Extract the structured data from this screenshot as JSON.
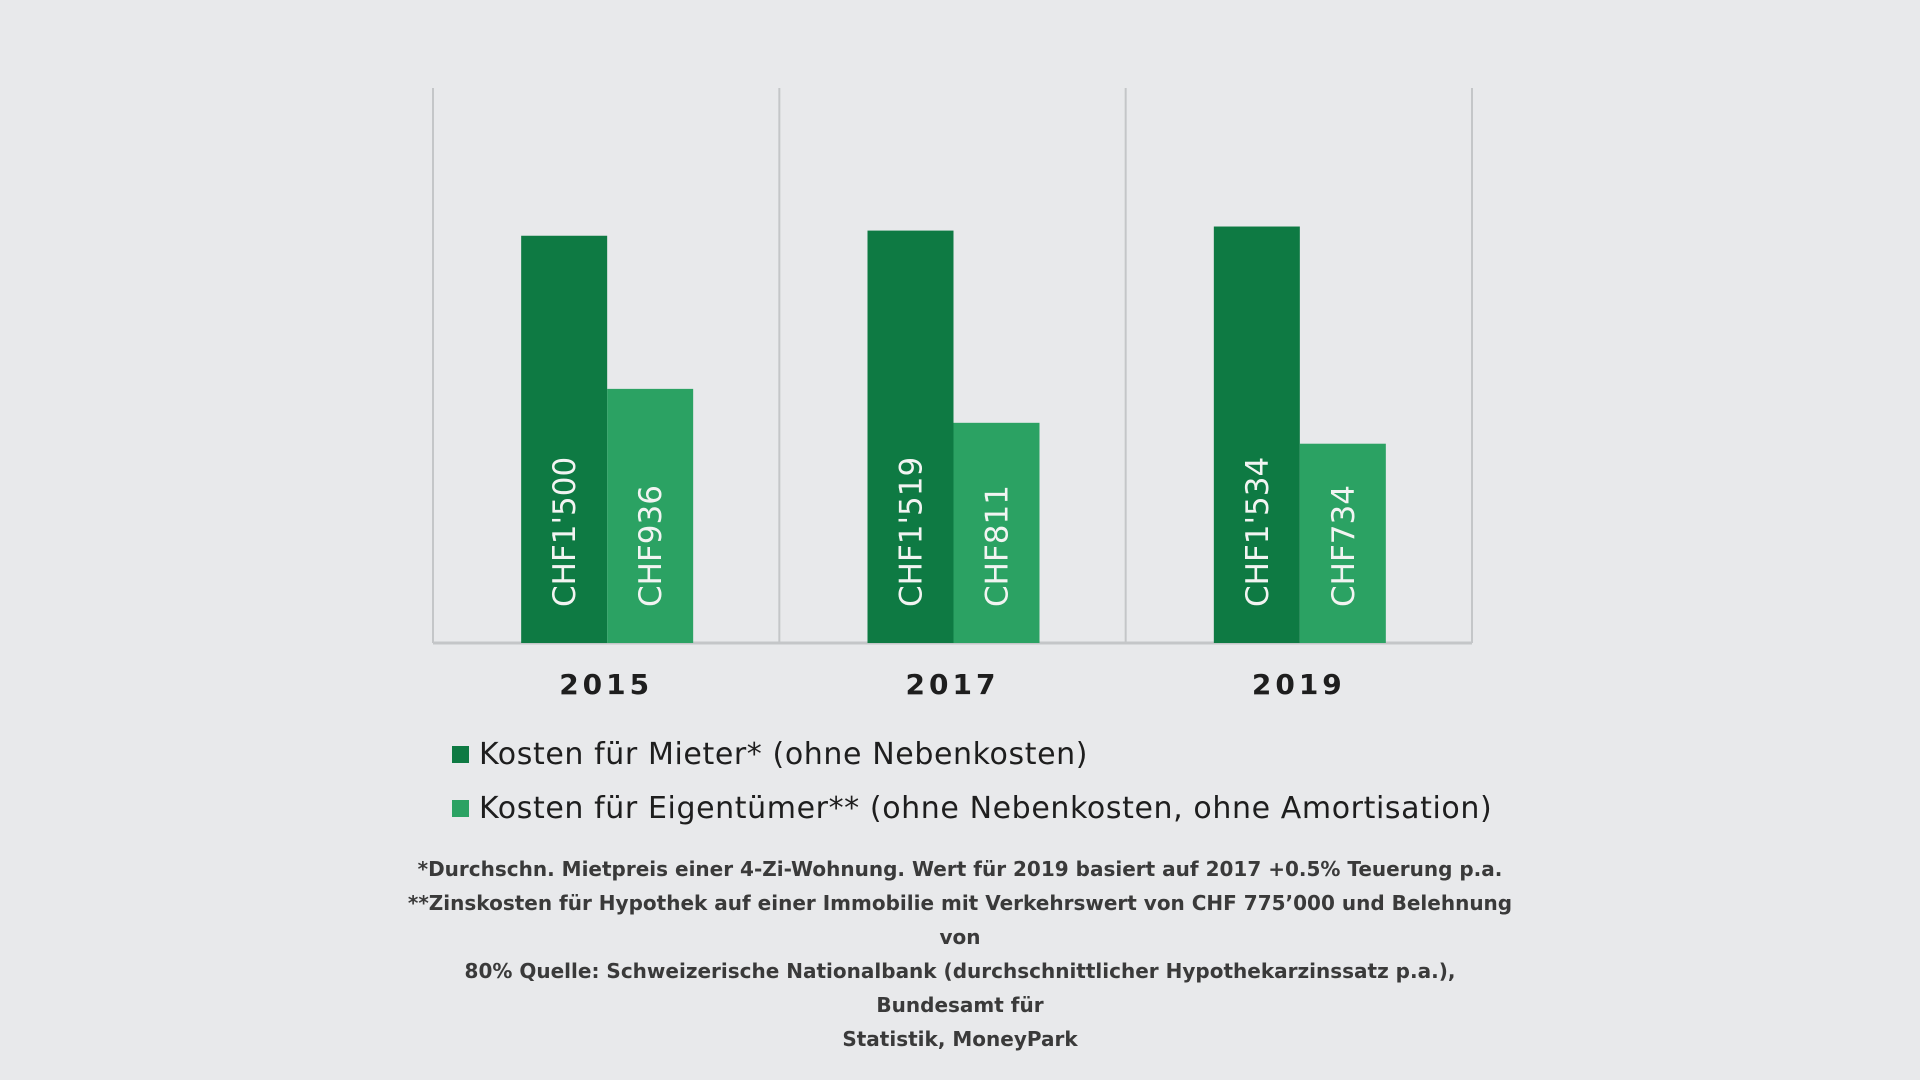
{
  "colors": {
    "background": "#e8e9eb",
    "mieter": "#0e7a43",
    "eigentuemer": "#2ba263",
    "grid": "#c4c6c8",
    "axis_text": "#1e1e1e",
    "bar_label": "#f2f4f2"
  },
  "chart_data": {
    "type": "bar",
    "categories": [
      "2015",
      "2017",
      "2019"
    ],
    "series": [
      {
        "name": "Kosten für Mieter* (ohne Nebenkosten)",
        "values": [
          1500,
          1519,
          1534
        ],
        "labels": [
          "CHF1'500",
          "CHF1'519",
          "CHF1'534"
        ],
        "color": "#0e7a43"
      },
      {
        "name": "Kosten für Eigentümer** (ohne Nebenkosten, ohne Amortisation)",
        "values": [
          936,
          811,
          734
        ],
        "labels": [
          "CHF936",
          "CHF811",
          "CHF734"
        ],
        "color": "#2ba263"
      }
    ],
    "ylim": [
      0,
      2000
    ],
    "grid": "vertical category separators",
    "legend_position": "bottom",
    "data_label_orientation": "vertical"
  },
  "legend": {
    "items": [
      {
        "label": "Kosten für Mieter* (ohne Nebenkosten)",
        "color": "#0e7a43"
      },
      {
        "label": "Kosten für Eigentümer** (ohne Nebenkosten, ohne Amortisation)",
        "color": "#2ba263"
      }
    ]
  },
  "footnotes": {
    "line1": "*Durchschn. Mietpreis einer 4-Zi-Wohnung. Wert für 2019 basiert auf 2017 +0.5% Teuerung p.a.",
    "line2": "**Zinskosten für Hypothek auf einer Immobilie mit Verkehrswert von CHF 775’000 und Belehnung von",
    "line3": "80% Quelle: Schweizerische Nationalbank (durchschnittlicher Hypothekarzinssatz p.a.), Bundesamt für",
    "line4": "Statistik, MoneyPark"
  }
}
